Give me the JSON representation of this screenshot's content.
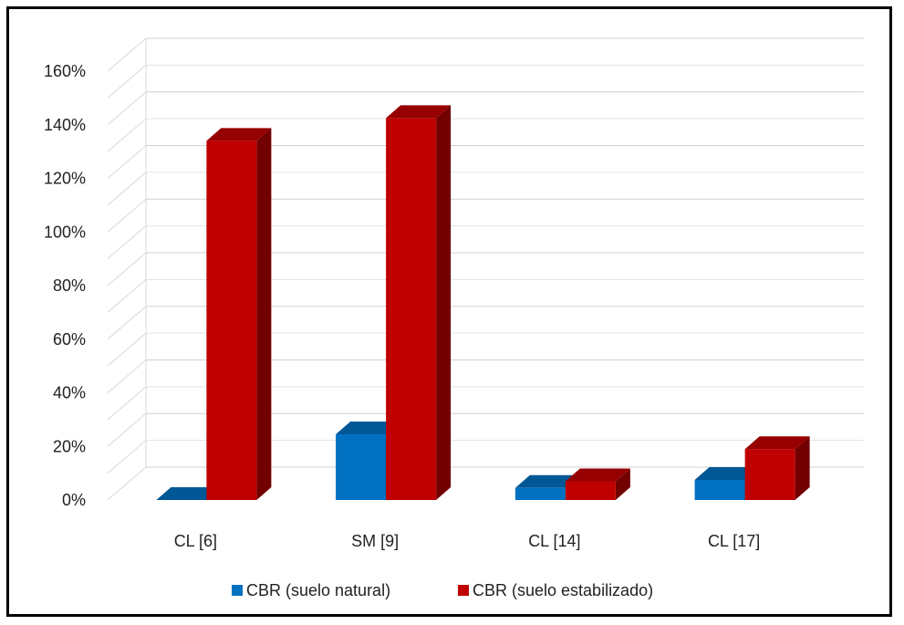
{
  "chart_data": {
    "type": "bar",
    "categories": [
      "CL [6]",
      "SM [9]",
      "CL [14]",
      "CL [17]"
    ],
    "series": [
      {
        "name": "CBR (suelo natural)",
        "values": [
          0.0,
          24.5,
          4.5,
          7.5
        ],
        "color": "#0070C0"
      },
      {
        "name": "CBR (suelo estabilizado)",
        "values": [
          134,
          142.5,
          7.0,
          19.0
        ],
        "color": "#C00000"
      }
    ],
    "ylim": [
      0,
      160
    ],
    "yticks": [
      "0%",
      "20%",
      "40%",
      "60%",
      "80%",
      "100%",
      "120%",
      "140%",
      "160%"
    ],
    "ytick_values": [
      0,
      20,
      40,
      60,
      80,
      100,
      120,
      140,
      160
    ],
    "grid": true,
    "three_d": true,
    "legend": "bottom",
    "title": "",
    "xlabel": "",
    "ylabel": ""
  }
}
